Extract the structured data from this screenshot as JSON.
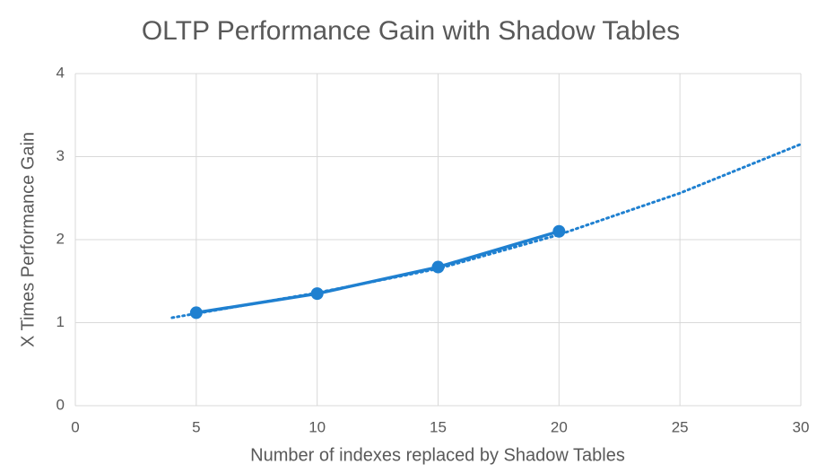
{
  "chart_data": {
    "type": "line",
    "title": "OLTP Performance Gain with Shadow Tables",
    "x_label": "Number of indexes replaced by Shadow Tables",
    "y_label": "X Times Performance Gain",
    "x": [
      5,
      10,
      15,
      20
    ],
    "values": [
      1.12,
      1.35,
      1.67,
      2.1
    ],
    "color": "#1f80d0",
    "trendline": {
      "x": [
        4,
        5,
        10,
        15,
        20,
        25,
        30
      ],
      "values": [
        1.06,
        1.11,
        1.36,
        1.65,
        2.06,
        2.56,
        3.15
      ]
    },
    "xlim": [
      0,
      30
    ],
    "xticks": [
      0,
      5,
      10,
      15,
      20,
      25,
      30
    ],
    "ylim": [
      0,
      4
    ],
    "yticks": [
      0,
      1,
      2,
      3,
      4
    ],
    "grid": true
  }
}
